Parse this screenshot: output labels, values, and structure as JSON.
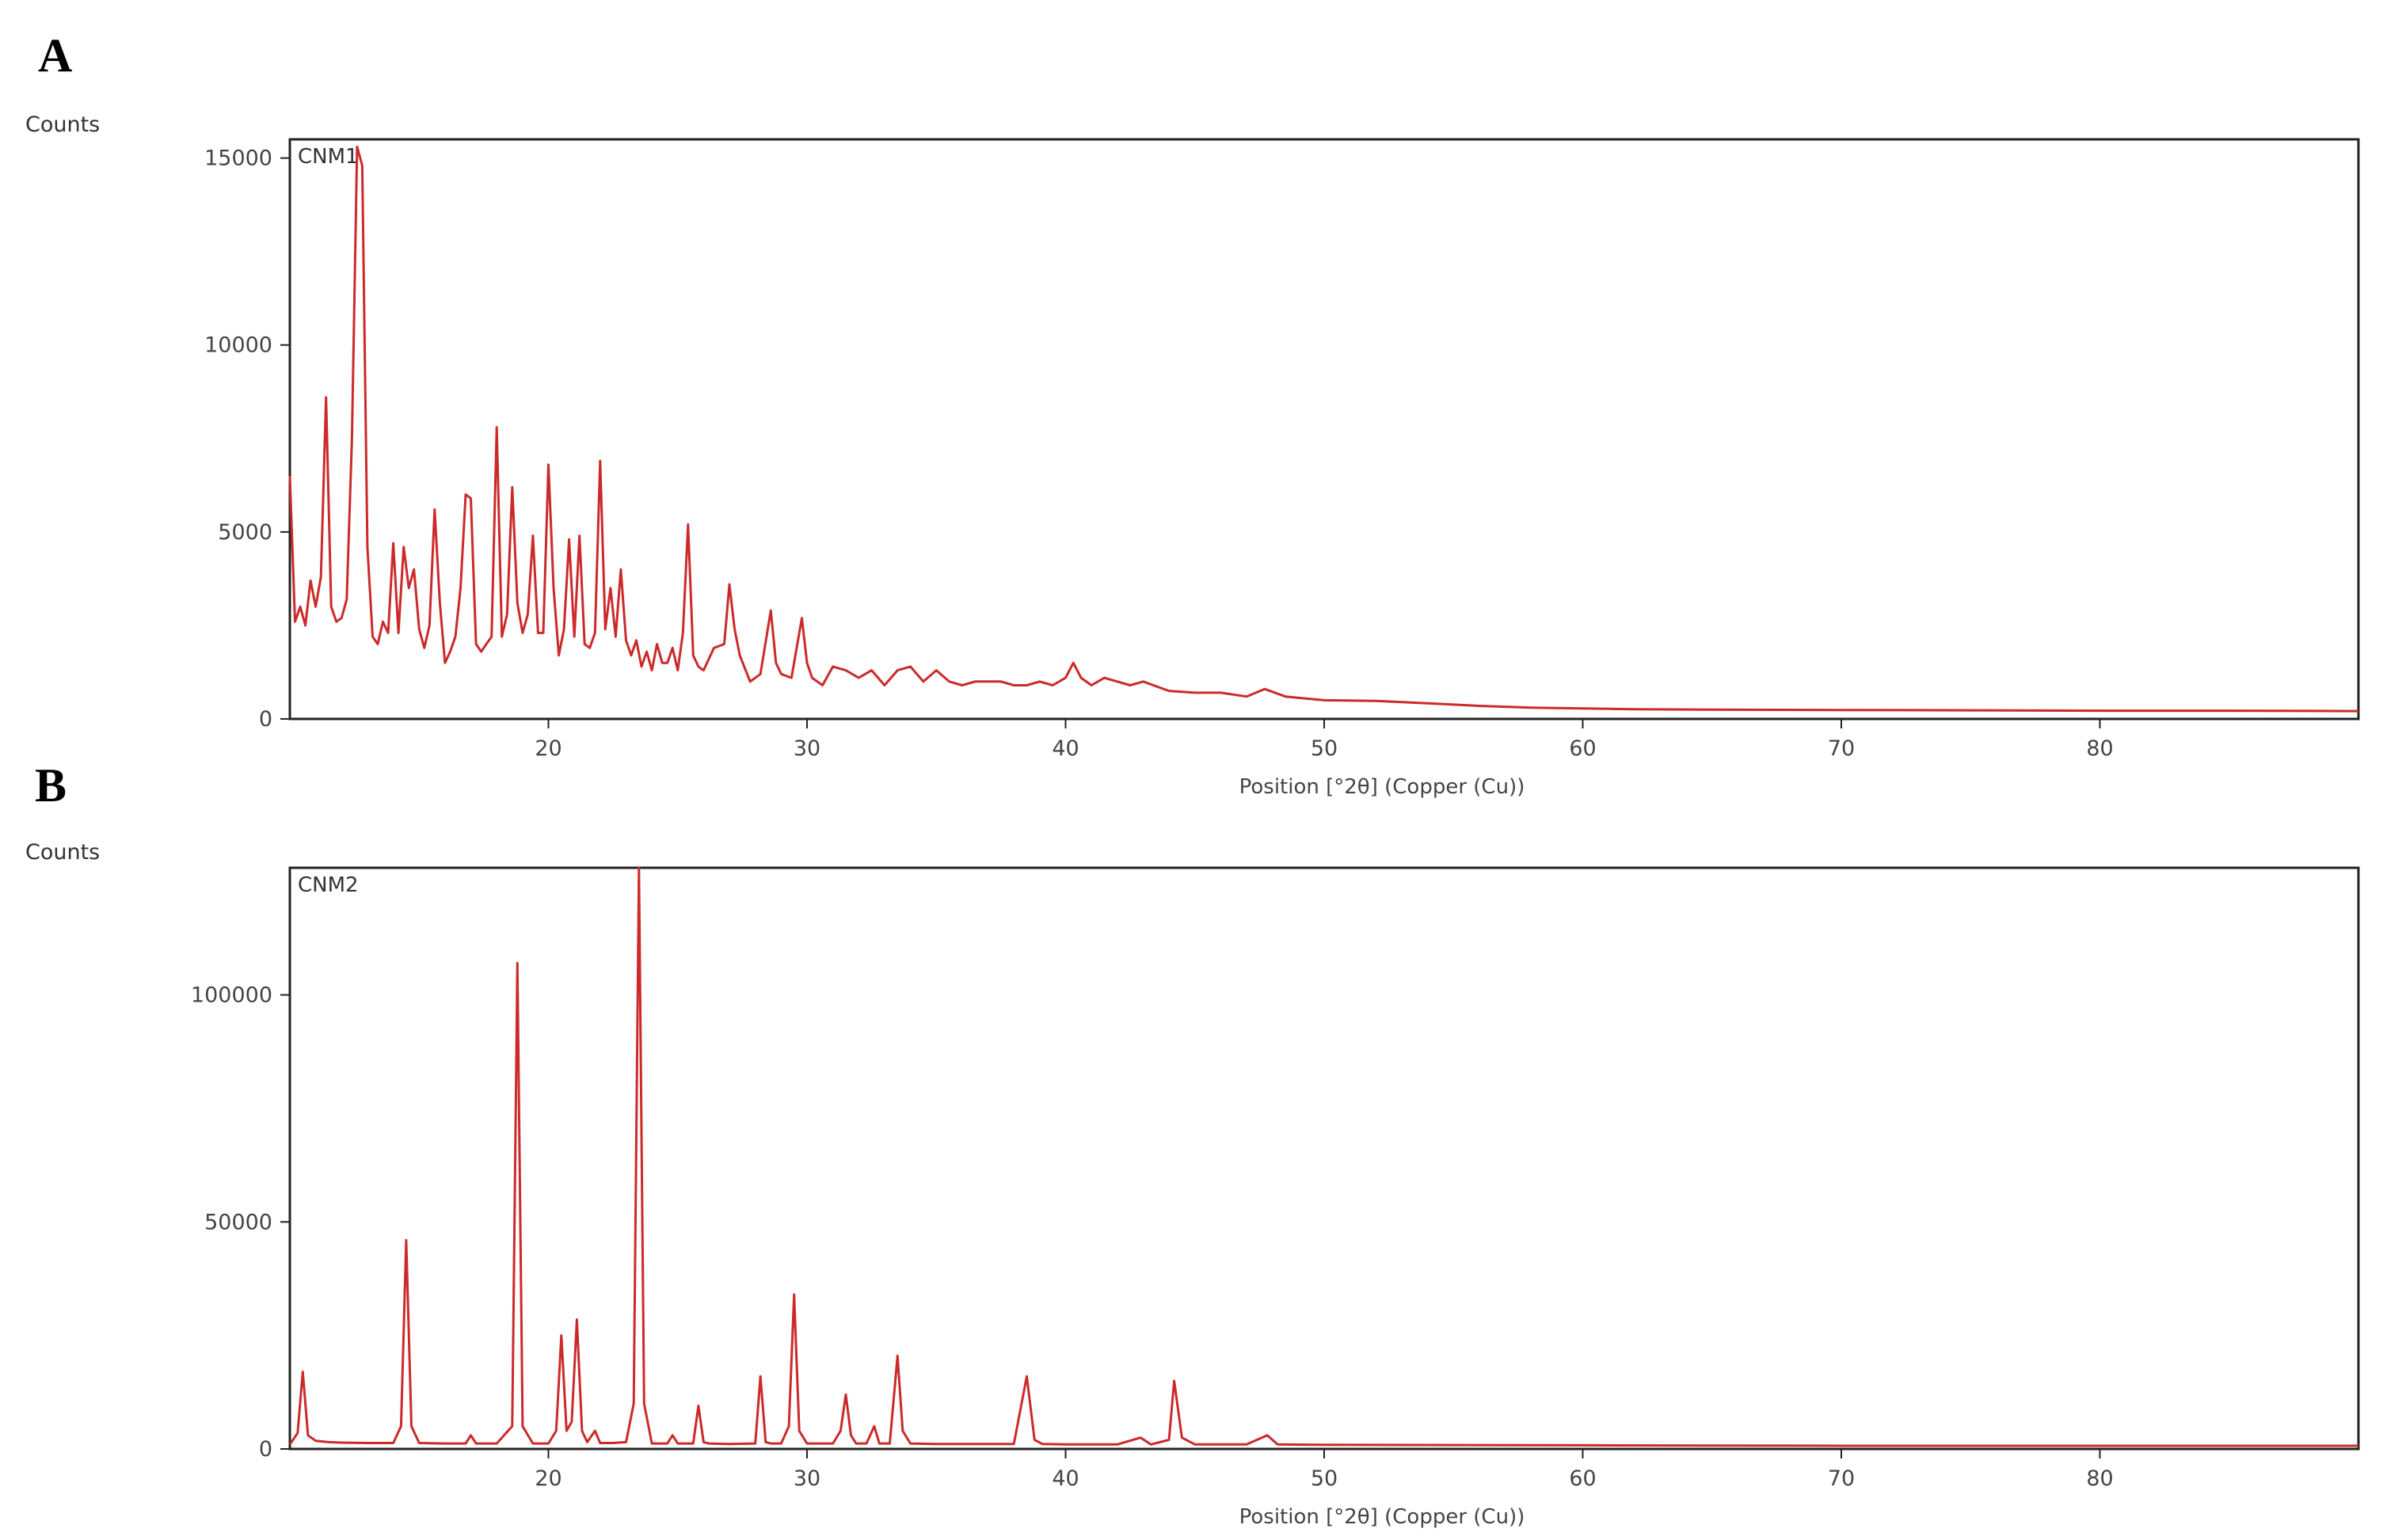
{
  "chart_data": [
    {
      "type": "line",
      "panel_label": "A",
      "series_label": "CNM1",
      "ylabel": "Counts",
      "xlabel": "Position [°2θ] (Copper (Cu))",
      "xlim": [
        10,
        90
      ],
      "ylim": [
        0,
        15500
      ],
      "xticks": [
        20,
        30,
        40,
        50,
        60,
        70,
        80
      ],
      "yticks": [
        0,
        5000,
        10000,
        15000
      ],
      "color": "#cc2a2a",
      "series": [
        {
          "x": [
            10.0,
            10.2,
            10.4,
            10.6,
            10.8,
            11.0,
            11.2,
            11.4,
            11.6,
            11.8,
            12.0,
            12.2,
            12.4,
            12.6,
            12.8,
            13.0,
            13.2,
            13.4,
            13.6,
            13.8,
            14.0,
            14.2,
            14.4,
            14.6,
            14.8,
            15.0,
            15.2,
            15.4,
            15.6,
            15.8,
            16.0,
            16.2,
            16.4,
            16.6,
            16.8,
            17.0,
            17.2,
            17.4,
            17.6,
            17.8,
            18.0,
            18.2,
            18.4,
            18.6,
            18.8,
            19.0,
            19.2,
            19.4,
            19.6,
            19.8,
            20.0,
            20.2,
            20.4,
            20.6,
            20.8,
            21.0,
            21.2,
            21.4,
            21.6,
            21.8,
            22.0,
            22.2,
            22.4,
            22.6,
            22.8,
            23.0,
            23.2,
            23.4,
            23.6,
            23.8,
            24.0,
            24.2,
            24.4,
            24.6,
            24.8,
            25.0,
            25.2,
            25.4,
            25.6,
            25.8,
            26.0,
            26.4,
            26.8,
            27.0,
            27.2,
            27.4,
            27.8,
            28.2,
            28.6,
            28.8,
            29.0,
            29.4,
            29.8,
            30.0,
            30.2,
            30.6,
            31.0,
            31.5,
            32.0,
            32.5,
            33.0,
            33.5,
            34.0,
            34.5,
            35.0,
            35.5,
            36.0,
            36.5,
            37.0,
            37.5,
            38.0,
            38.5,
            39.0,
            39.5,
            40.0,
            40.3,
            40.6,
            41.0,
            41.5,
            42.0,
            42.5,
            43.0,
            44.0,
            45.0,
            46.0,
            47.0,
            47.7,
            48.5,
            50.0,
            52.0,
            54.0,
            56.0,
            58.0,
            60.0,
            62.0,
            65.0,
            70.0,
            75.0,
            80.0,
            85.0,
            90.0
          ],
          "y": [
            6500,
            2600,
            3000,
            2500,
            3700,
            3000,
            3800,
            8600,
            3000,
            2600,
            2700,
            3200,
            7500,
            15300,
            14800,
            4600,
            2200,
            2000,
            2600,
            2300,
            4700,
            2300,
            4600,
            3500,
            4000,
            2400,
            1900,
            2500,
            5600,
            3100,
            1500,
            1800,
            2200,
            3500,
            6000,
            5900,
            2000,
            1800,
            2000,
            2200,
            7800,
            2200,
            2800,
            6200,
            3100,
            2300,
            2800,
            4900,
            2300,
            2300,
            6800,
            3500,
            1700,
            2400,
            4800,
            2200,
            4900,
            2000,
            1900,
            2300,
            6900,
            2400,
            3500,
            2200,
            4000,
            2100,
            1700,
            2100,
            1400,
            1800,
            1300,
            2000,
            1500,
            1500,
            1900,
            1300,
            2300,
            5200,
            1700,
            1400,
            1300,
            1900,
            2000,
            3600,
            2400,
            1700,
            1000,
            1200,
            2900,
            1500,
            1200,
            1100,
            2700,
            1500,
            1100,
            900,
            1400,
            1300,
            1100,
            1300,
            900,
            1300,
            1400,
            1000,
            1300,
            1000,
            900,
            1000,
            1000,
            1000,
            900,
            900,
            1000,
            900,
            1100,
            1500,
            1100,
            900,
            1100,
            1000,
            900,
            1000,
            750,
            700,
            700,
            600,
            800,
            600,
            500,
            480,
            420,
            350,
            300,
            280,
            260,
            250,
            240,
            230,
            220,
            220,
            210
          ]
        }
      ]
    },
    {
      "type": "line",
      "panel_label": "B",
      "series_label": "CNM2",
      "ylabel": "Counts",
      "xlabel": "Position [°2θ] (Copper (Cu))",
      "xlim": [
        10,
        90
      ],
      "ylim": [
        0,
        128000
      ],
      "xticks": [
        20,
        30,
        40,
        50,
        60,
        70,
        80
      ],
      "yticks": [
        0,
        50000,
        100000
      ],
      "color": "#cc2a2a",
      "series": [
        {
          "x": [
            10.0,
            10.3,
            10.5,
            10.7,
            11.0,
            11.5,
            12.0,
            13.0,
            14.0,
            14.3,
            14.5,
            14.7,
            15.0,
            16.0,
            16.8,
            17.0,
            17.2,
            18.0,
            18.6,
            18.8,
            19.0,
            19.4,
            20.0,
            20.3,
            20.5,
            20.7,
            20.9,
            21.1,
            21.3,
            21.5,
            21.8,
            22.0,
            22.5,
            23.0,
            23.3,
            23.5,
            23.7,
            24.0,
            24.6,
            24.8,
            25.0,
            25.6,
            25.8,
            26.0,
            26.2,
            27.0,
            28.0,
            28.2,
            28.4,
            28.6,
            29.0,
            29.3,
            29.5,
            29.7,
            30.0,
            31.0,
            31.3,
            31.5,
            31.7,
            31.9,
            32.3,
            32.6,
            32.8,
            33.2,
            33.5,
            33.7,
            34.0,
            35.0,
            36.0,
            38.0,
            38.5,
            38.8,
            39.1,
            40.0,
            42.0,
            42.9,
            43.3,
            44.0,
            44.2,
            44.5,
            45.0,
            47.0,
            47.8,
            48.2,
            50.0,
            60.0,
            70.0,
            80.0,
            90.0
          ],
          "y": [
            1000,
            3500,
            17000,
            3000,
            1800,
            1500,
            1400,
            1300,
            1300,
            5000,
            46000,
            5000,
            1300,
            1200,
            1200,
            3000,
            1200,
            1200,
            5000,
            107000,
            5000,
            1200,
            1200,
            4000,
            25000,
            4000,
            6000,
            28500,
            4000,
            1500,
            4000,
            1300,
            1300,
            1500,
            10000,
            128000,
            10000,
            1200,
            1200,
            3000,
            1200,
            1200,
            9500,
            1500,
            1200,
            1100,
            1200,
            16000,
            1500,
            1200,
            1200,
            5000,
            34000,
            4000,
            1200,
            1200,
            4000,
            12000,
            3000,
            1200,
            1200,
            5000,
            1200,
            1200,
            20500,
            4000,
            1200,
            1100,
            1100,
            1100,
            16000,
            2000,
            1100,
            1000,
            1000,
            2500,
            1000,
            2000,
            15000,
            2500,
            1000,
            1000,
            3000,
            1000,
            900,
            800,
            700,
            700,
            700
          ]
        }
      ]
    }
  ]
}
